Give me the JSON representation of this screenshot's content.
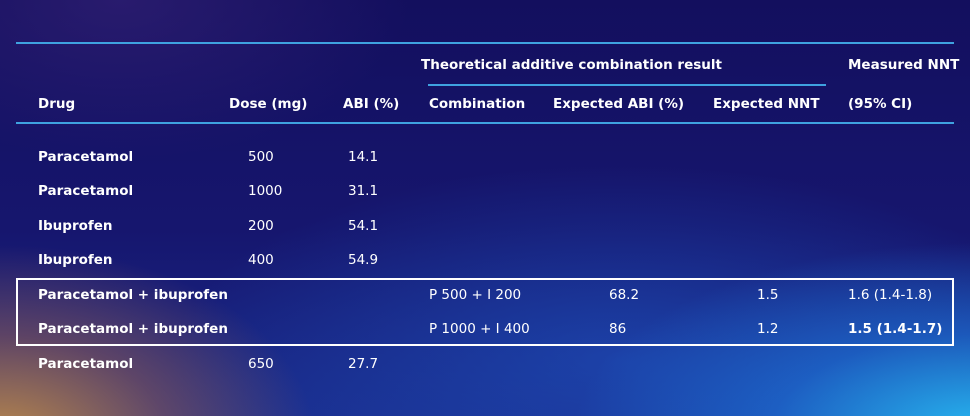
{
  "header": {
    "group_label": "Theoretical additive combination result",
    "measured_label": "Measured NNT",
    "col_drug": "Drug",
    "col_dose": "Dose (mg)",
    "col_abi": "ABI (%)",
    "col_combination": "Combination",
    "col_expected_abi": "Expected ABI (%)",
    "col_expected_nnt": "Expected NNT",
    "col_ci": "(95% CI)"
  },
  "rows": [
    {
      "drug": "Paracetamol",
      "dose": "500",
      "abi": "14.1",
      "combination": "",
      "expected_abi": "",
      "expected_nnt": "",
      "measured": ""
    },
    {
      "drug": "Paracetamol",
      "dose": "1000",
      "abi": "31.1",
      "combination": "",
      "expected_abi": "",
      "expected_nnt": "",
      "measured": ""
    },
    {
      "drug": "Ibuprofen",
      "dose": "200",
      "abi": "54.1",
      "combination": "",
      "expected_abi": "",
      "expected_nnt": "",
      "measured": ""
    },
    {
      "drug": "Ibuprofen",
      "dose": "400",
      "abi": "54.9",
      "combination": "",
      "expected_abi": "",
      "expected_nnt": "",
      "measured": ""
    },
    {
      "drug": "Paracetamol + ibuprofen",
      "dose": "",
      "abi": "",
      "combination": "P 500 + I 200",
      "expected_abi": "68.2",
      "expected_nnt": "1.5",
      "measured": "1.6 (1.4-1.8)"
    },
    {
      "drug": "Paracetamol + ibuprofen",
      "dose": "",
      "abi": "",
      "combination": "P 1000 + I 400",
      "expected_abi": "86",
      "expected_nnt": "1.2",
      "measured": "1.5 (1.4-1.7)"
    },
    {
      "drug": "Paracetamol",
      "dose": "650",
      "abi": "27.7",
      "combination": "",
      "expected_abi": "",
      "expected_nnt": "",
      "measured": ""
    }
  ],
  "highlight": {
    "rows": [
      5,
      6
    ],
    "bold_measured_row": 6
  },
  "colors": {
    "rule": "#3fa2e0",
    "text": "#ffffff",
    "highlight_border": "#ffffff"
  }
}
